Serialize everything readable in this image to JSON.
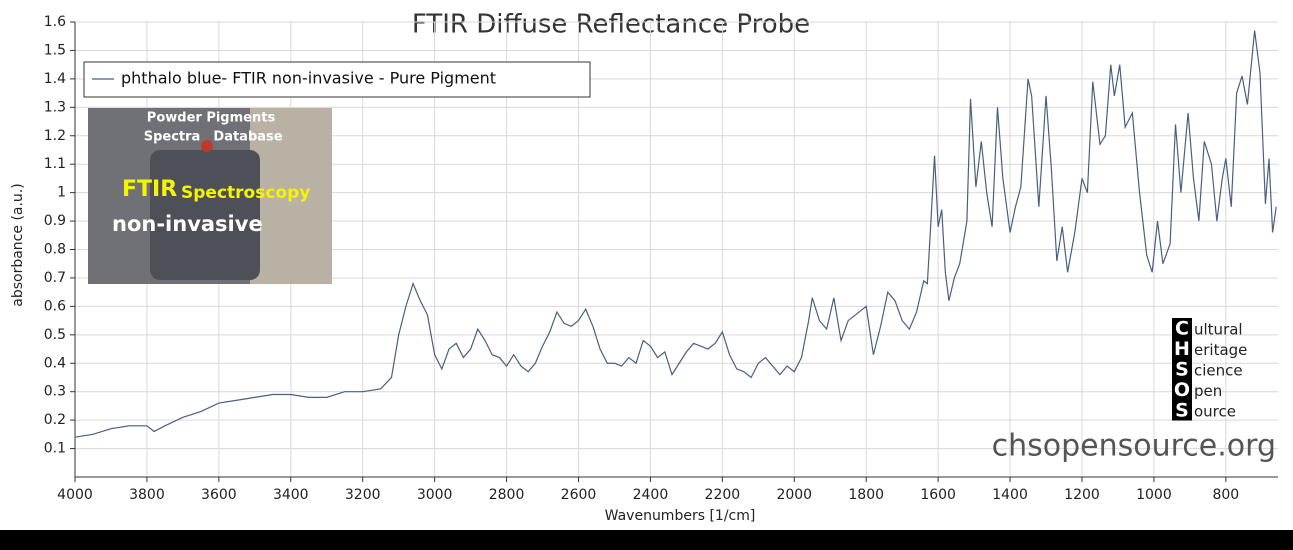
{
  "chart_data": {
    "type": "line",
    "title": "FTIR Diffuse Reflectance Probe",
    "x_label": "Wavenumbers [1/cm]",
    "y_label": "absorbance (a.u.)",
    "xlim": [
      4000,
      655
    ],
    "ylim": [
      0,
      1.6
    ],
    "xticks": [
      4000,
      3800,
      3600,
      3400,
      3200,
      3000,
      2800,
      2600,
      2400,
      2200,
      2000,
      1800,
      1600,
      1400,
      1200,
      1000,
      800
    ],
    "yticks": [
      0.1,
      0.2,
      0.3,
      0.4,
      0.5,
      0.6,
      0.7,
      0.8,
      0.9,
      1,
      1.1,
      1.2,
      1.3,
      1.4,
      1.5,
      1.6
    ],
    "grid": true,
    "legend": "top-left",
    "x": [
      4000,
      3950,
      3900,
      3850,
      3800,
      3780,
      3750,
      3700,
      3650,
      3600,
      3550,
      3500,
      3450,
      3400,
      3350,
      3300,
      3250,
      3200,
      3150,
      3120,
      3100,
      3080,
      3060,
      3040,
      3020,
      3000,
      2980,
      2960,
      2940,
      2920,
      2900,
      2880,
      2860,
      2840,
      2820,
      2800,
      2780,
      2760,
      2740,
      2720,
      2700,
      2680,
      2660,
      2640,
      2620,
      2600,
      2580,
      2560,
      2540,
      2520,
      2500,
      2480,
      2460,
      2440,
      2420,
      2400,
      2380,
      2360,
      2340,
      2320,
      2300,
      2280,
      2260,
      2240,
      2220,
      2200,
      2180,
      2160,
      2140,
      2120,
      2100,
      2080,
      2060,
      2040,
      2020,
      2000,
      1980,
      1960,
      1950,
      1930,
      1910,
      1890,
      1870,
      1850,
      1820,
      1800,
      1780,
      1760,
      1740,
      1720,
      1700,
      1680,
      1660,
      1640,
      1630,
      1620,
      1610,
      1600,
      1590,
      1580,
      1570,
      1555,
      1540,
      1520,
      1510,
      1495,
      1480,
      1465,
      1450,
      1435,
      1420,
      1400,
      1385,
      1370,
      1350,
      1340,
      1320,
      1300,
      1285,
      1270,
      1255,
      1240,
      1220,
      1200,
      1185,
      1170,
      1150,
      1135,
      1120,
      1110,
      1095,
      1080,
      1060,
      1040,
      1020,
      1005,
      990,
      975,
      955,
      940,
      925,
      905,
      890,
      875,
      860,
      840,
      825,
      810,
      800,
      785,
      770,
      755,
      740,
      720,
      705,
      690,
      680,
      670,
      660
    ],
    "series": [
      {
        "name": "phthalo blue- FTIR non-invasive - Pure Pigment",
        "color": "#4a5f80",
        "values": [
          0.14,
          0.15,
          0.17,
          0.18,
          0.18,
          0.16,
          0.18,
          0.21,
          0.23,
          0.26,
          0.27,
          0.28,
          0.29,
          0.29,
          0.28,
          0.28,
          0.3,
          0.3,
          0.31,
          0.35,
          0.5,
          0.6,
          0.68,
          0.62,
          0.57,
          0.43,
          0.38,
          0.45,
          0.47,
          0.42,
          0.45,
          0.52,
          0.48,
          0.43,
          0.42,
          0.39,
          0.43,
          0.39,
          0.37,
          0.4,
          0.46,
          0.51,
          0.58,
          0.54,
          0.53,
          0.55,
          0.59,
          0.53,
          0.45,
          0.4,
          0.4,
          0.39,
          0.42,
          0.4,
          0.48,
          0.46,
          0.42,
          0.44,
          0.36,
          0.4,
          0.44,
          0.47,
          0.46,
          0.45,
          0.47,
          0.51,
          0.43,
          0.38,
          0.37,
          0.35,
          0.4,
          0.42,
          0.39,
          0.36,
          0.39,
          0.37,
          0.42,
          0.55,
          0.63,
          0.55,
          0.52,
          0.63,
          0.48,
          0.55,
          0.58,
          0.6,
          0.43,
          0.53,
          0.65,
          0.62,
          0.55,
          0.52,
          0.58,
          0.69,
          0.68,
          0.9,
          1.13,
          0.88,
          0.94,
          0.72,
          0.62,
          0.7,
          0.75,
          0.9,
          1.33,
          1.02,
          1.18,
          1.0,
          0.88,
          1.3,
          1.05,
          0.86,
          0.95,
          1.02,
          1.4,
          1.34,
          0.95,
          1.34,
          1.08,
          0.76,
          0.88,
          0.72,
          0.86,
          1.05,
          1.0,
          1.39,
          1.17,
          1.2,
          1.45,
          1.34,
          1.45,
          1.23,
          1.28,
          1.0,
          0.78,
          0.72,
          0.9,
          0.75,
          0.82,
          1.24,
          1.0,
          1.28,
          1.05,
          0.9,
          1.18,
          1.1,
          0.9,
          1.05,
          1.12,
          0.95,
          1.35,
          1.41,
          1.31,
          1.57,
          1.42,
          0.96,
          1.12,
          0.86,
          0.95
        ]
      }
    ],
    "watermark": "chsopensource.org",
    "logo": [
      {
        "letter": "C",
        "rest": "ultural"
      },
      {
        "letter": "H",
        "rest": "eritage"
      },
      {
        "letter": "S",
        "rest": "cience"
      },
      {
        "letter": "O",
        "rest": "pen"
      },
      {
        "letter": "S",
        "rest": "ource"
      }
    ],
    "inset_text": [
      "Powder Pigments",
      "Spectra",
      "Database",
      "FTIR",
      "Spectroscopy",
      "non-invasive"
    ]
  }
}
